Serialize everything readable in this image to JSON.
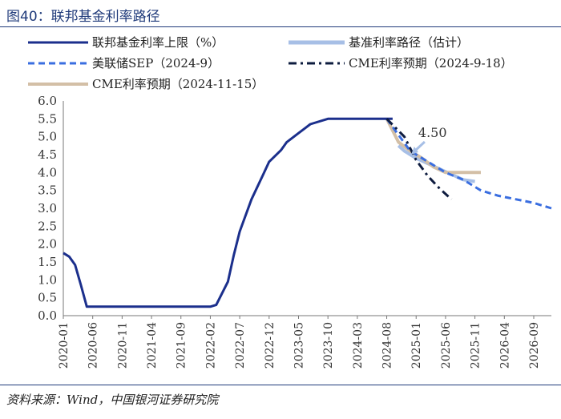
{
  "title": "图40：联邦基金利率路径",
  "source": "资料来源：Wind，中国银河证券研究院",
  "chart_data": {
    "type": "line",
    "ylim": [
      0,
      6
    ],
    "yticks": [
      "0.0",
      "0.5",
      "1.0",
      "1.5",
      "2.0",
      "2.5",
      "3.0",
      "3.5",
      "4.0",
      "4.5",
      "5.0",
      "5.5",
      "6.0"
    ],
    "xticks": [
      "2020-01",
      "2020-06",
      "2020-11",
      "2021-04",
      "2021-09",
      "2022-02",
      "2022-07",
      "2022-12",
      "2023-05",
      "2023-10",
      "2024-03",
      "2024-08",
      "2025-01",
      "2025-06",
      "2025-11",
      "2026-04",
      "2026-09"
    ],
    "annotation": "4.50",
    "legend": [
      "联邦基金利率上限（%）",
      "基准利率路径（估计）",
      "美联储SEP（2024-9）",
      "CME利率预期（2024-9-18）",
      "CME利率预期（2024-11-15）"
    ],
    "series": [
      {
        "name": "联邦基金利率上限（%）",
        "color": "#1b2f8c",
        "style": "solid",
        "x": [
          "2020-01",
          "2020-02",
          "2020-03",
          "2020-04",
          "2020-05",
          "2020-06",
          "2020-11",
          "2021-04",
          "2021-09",
          "2022-01",
          "2022-02",
          "2022-03",
          "2022-05",
          "2022-06",
          "2022-07",
          "2022-09",
          "2022-11",
          "2022-12",
          "2023-02",
          "2023-03",
          "2023-05",
          "2023-07",
          "2023-10",
          "2024-03",
          "2024-08",
          "2024-09"
        ],
        "values": [
          1.75,
          1.65,
          1.42,
          0.85,
          0.25,
          0.25,
          0.25,
          0.25,
          0.25,
          0.25,
          0.25,
          0.3,
          0.95,
          1.7,
          2.35,
          3.25,
          3.95,
          4.3,
          4.62,
          4.85,
          5.1,
          5.35,
          5.5,
          5.5,
          5.5,
          5.5
        ]
      },
      {
        "name": "基准利率路径（估计）",
        "color": "#a7bfe6",
        "style": "solid",
        "x": [
          "2024-10",
          "2024-11",
          "2024-12",
          "2025-01",
          "2025-03",
          "2025-05",
          "2025-07",
          "2025-09",
          "2025-11"
        ],
        "values": [
          4.75,
          4.6,
          4.5,
          4.4,
          4.25,
          4.1,
          3.95,
          3.8,
          3.75
        ]
      },
      {
        "name": "美联储SEP（2024-9）",
        "color": "#3a6ee0",
        "style": "dashed",
        "x": [
          "2024-08",
          "2024-12",
          "2025-03",
          "2025-06",
          "2025-09",
          "2025-12",
          "2026-03",
          "2026-06",
          "2026-09",
          "2026-12"
        ],
        "values": [
          5.5,
          4.6,
          4.3,
          4.0,
          3.8,
          3.5,
          3.35,
          3.25,
          3.15,
          3.0
        ]
      },
      {
        "name": "CME利率预期（2024-9-18）",
        "color": "#0e1c3f",
        "style": "dashdot",
        "x": [
          "2024-08",
          "2024-11",
          "2025-01",
          "2025-03",
          "2025-05",
          "2025-07"
        ],
        "values": [
          5.5,
          5.0,
          4.35,
          3.9,
          3.55,
          3.25
        ]
      },
      {
        "name": "CME利率预期（2024-11-15）",
        "color": "#d3bfa6",
        "style": "solid",
        "x": [
          "2024-08",
          "2024-10",
          "2024-12",
          "2025-02",
          "2025-04",
          "2025-06",
          "2025-09",
          "2025-12"
        ],
        "values": [
          5.5,
          4.85,
          4.6,
          4.4,
          4.15,
          4.0,
          4.0,
          4.0
        ]
      }
    ]
  }
}
